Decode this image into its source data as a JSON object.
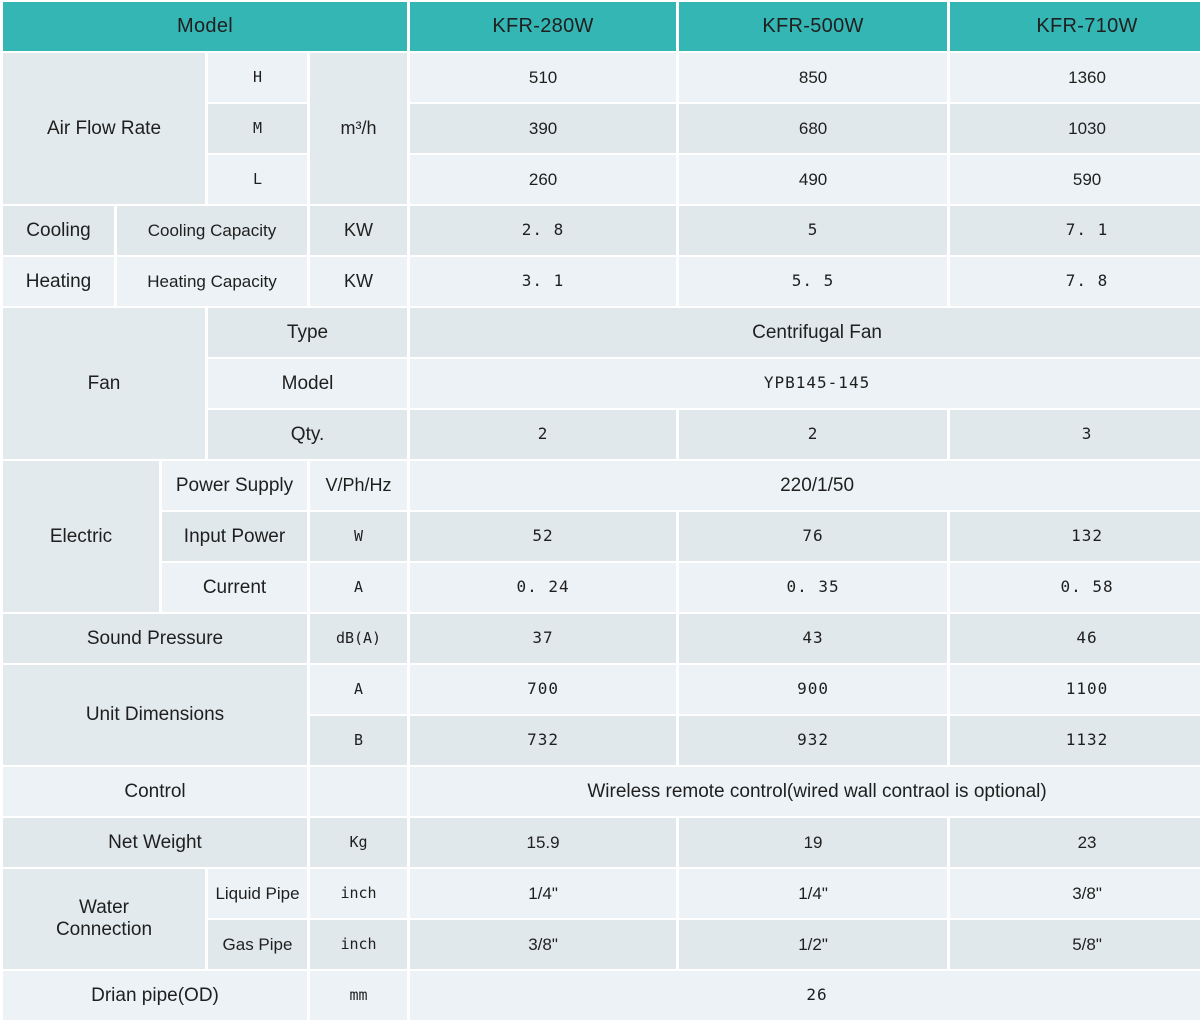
{
  "colors": {
    "header_bg": "#34b6b4",
    "header_text": "#ffffff",
    "row_light": "#ecf2f5",
    "row_dark": "#e0e8eb",
    "merged_label_bg": "#e3eaed",
    "gap": "#ffffff",
    "text": "#1f1f1f"
  },
  "table": {
    "rows": [
      {
        "header": true,
        "cells": [
          {
            "text": "Model",
            "colspan": 5
          },
          {
            "text": "KFR-280W"
          },
          {
            "text": "KFR-500W"
          },
          {
            "text": "KFR-710W"
          }
        ]
      },
      {
        "cells": [
          {
            "text": "Air Flow Rate",
            "colspan": 3,
            "rowspan": 3,
            "kind": "section"
          },
          {
            "text": "H",
            "kind": "unit"
          },
          {
            "text": "m³/h",
            "rowspan": 3,
            "kind": "unitbig"
          },
          {
            "text": "510",
            "kind": "val"
          },
          {
            "text": "850",
            "kind": "val"
          },
          {
            "text": "1360",
            "kind": "val"
          }
        ]
      },
      {
        "cells": [
          {
            "text": "M",
            "kind": "unit"
          },
          {
            "text": "390",
            "kind": "val"
          },
          {
            "text": "680",
            "kind": "val"
          },
          {
            "text": "1030",
            "kind": "val"
          }
        ]
      },
      {
        "cells": [
          {
            "text": "L",
            "kind": "unit"
          },
          {
            "text": "260",
            "kind": "val"
          },
          {
            "text": "490",
            "kind": "val"
          },
          {
            "text": "590",
            "kind": "val"
          }
        ]
      },
      {
        "cells": [
          {
            "text": "Cooling",
            "kind": "section"
          },
          {
            "text": "Cooling Capacity",
            "colspan": 3,
            "kind": "sub"
          },
          {
            "text": "KW",
            "kind": "unitbig"
          },
          {
            "text": "2. 8",
            "kind": "valmono"
          },
          {
            "text": "5",
            "kind": "valmono"
          },
          {
            "text": "7. 1",
            "kind": "valmono"
          }
        ]
      },
      {
        "cells": [
          {
            "text": "Heating",
            "kind": "section"
          },
          {
            "text": "Heating Capacity",
            "colspan": 3,
            "kind": "sub"
          },
          {
            "text": "KW",
            "kind": "unitbig"
          },
          {
            "text": "3. 1",
            "kind": "valmono"
          },
          {
            "text": "5. 5",
            "kind": "valmono"
          },
          {
            "text": "7. 8",
            "kind": "valmono"
          }
        ]
      },
      {
        "cells": [
          {
            "text": "Fan",
            "colspan": 3,
            "rowspan": 3,
            "kind": "section"
          },
          {
            "text": "Type",
            "colspan": 2,
            "kind": "sub2"
          },
          {
            "text": "Centrifugal Fan",
            "colspan": 3,
            "kind": "valbig"
          }
        ]
      },
      {
        "cells": [
          {
            "text": "Model",
            "colspan": 2,
            "kind": "sub2"
          },
          {
            "text": "YPB145-145",
            "colspan": 3,
            "kind": "valmono"
          }
        ]
      },
      {
        "cells": [
          {
            "text": "Qty.",
            "colspan": 2,
            "kind": "sub2"
          },
          {
            "text": "2",
            "kind": "valmono"
          },
          {
            "text": "2",
            "kind": "valmono"
          },
          {
            "text": "3",
            "kind": "valmono"
          }
        ]
      },
      {
        "cells": [
          {
            "text": "Electric",
            "colspan": 2,
            "rowspan": 3,
            "kind": "section"
          },
          {
            "text": "Power Supply",
            "colspan": 2,
            "kind": "sub2"
          },
          {
            "text": "V/Ph/Hz",
            "kind": "unitbig"
          },
          {
            "text": "220/1/50",
            "colspan": 3,
            "kind": "valbig"
          }
        ]
      },
      {
        "cells": [
          {
            "text": "Input Power",
            "colspan": 2,
            "kind": "sub2"
          },
          {
            "text": "W",
            "kind": "unit"
          },
          {
            "text": "52",
            "kind": "valmono"
          },
          {
            "text": "76",
            "kind": "valmono"
          },
          {
            "text": "132",
            "kind": "valmono"
          }
        ]
      },
      {
        "cells": [
          {
            "text": "Current",
            "colspan": 2,
            "kind": "sub2"
          },
          {
            "text": "A",
            "kind": "unit"
          },
          {
            "text": "0. 24",
            "kind": "valmono"
          },
          {
            "text": "0. 35",
            "kind": "valmono"
          },
          {
            "text": "0. 58",
            "kind": "valmono"
          }
        ]
      },
      {
        "cells": [
          {
            "text": "Sound Pressure",
            "colspan": 4,
            "kind": "section"
          },
          {
            "text": "dB(A)",
            "kind": "unit"
          },
          {
            "text": "37",
            "kind": "valmono"
          },
          {
            "text": "43",
            "kind": "valmono"
          },
          {
            "text": "46",
            "kind": "valmono"
          }
        ]
      },
      {
        "cells": [
          {
            "text": "Unit Dimensions",
            "colspan": 4,
            "rowspan": 2,
            "kind": "section"
          },
          {
            "text": "A",
            "kind": "unit"
          },
          {
            "text": "700",
            "kind": "valmono"
          },
          {
            "text": "900",
            "kind": "valmono"
          },
          {
            "text": "1100",
            "kind": "valmono"
          }
        ]
      },
      {
        "cells": [
          {
            "text": "B",
            "kind": "unit"
          },
          {
            "text": "732",
            "kind": "valmono"
          },
          {
            "text": "932",
            "kind": "valmono"
          },
          {
            "text": "1132",
            "kind": "valmono"
          }
        ]
      },
      {
        "cells": [
          {
            "text": "Control",
            "colspan": 4,
            "kind": "section"
          },
          {
            "text": "",
            "kind": "unit"
          },
          {
            "text": "Wireless remote control(wired wall contraol is optional)",
            "colspan": 3,
            "kind": "valbig"
          }
        ]
      },
      {
        "cells": [
          {
            "text": "Net Weight",
            "colspan": 4,
            "kind": "section"
          },
          {
            "text": "Kg",
            "kind": "unit"
          },
          {
            "text": "15.9",
            "kind": "val"
          },
          {
            "text": "19",
            "kind": "val"
          },
          {
            "text": "23",
            "kind": "val"
          }
        ]
      },
      {
        "cells": [
          {
            "text": "Water\nConnection",
            "colspan": 3,
            "rowspan": 2,
            "kind": "section"
          },
          {
            "text": "Liquid Pipe",
            "kind": "sub"
          },
          {
            "text": "inch",
            "kind": "unit"
          },
          {
            "text": "1/4\"",
            "kind": "val"
          },
          {
            "text": "1/4\"",
            "kind": "val"
          },
          {
            "text": "3/8\"",
            "kind": "val"
          }
        ]
      },
      {
        "cells": [
          {
            "text": "Gas Pipe",
            "kind": "sub"
          },
          {
            "text": "inch",
            "kind": "unit"
          },
          {
            "text": "3/8\"",
            "kind": "val"
          },
          {
            "text": "1/2\"",
            "kind": "val"
          },
          {
            "text": "5/8\"",
            "kind": "val"
          }
        ]
      },
      {
        "cells": [
          {
            "text": "Drian pipe(OD)",
            "colspan": 4,
            "kind": "section"
          },
          {
            "text": "mm",
            "kind": "unit"
          },
          {
            "text": "26",
            "colspan": 3,
            "kind": "valmono"
          }
        ]
      }
    ]
  }
}
